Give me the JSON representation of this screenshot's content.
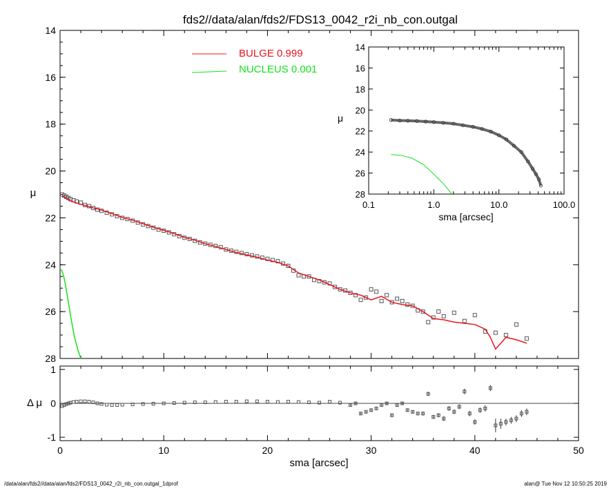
{
  "footer": {
    "file_path": "/data/alan/fds2//data/alan/fds2/FDS13_0042_r2i_nb_con.outgal_1dprof",
    "user_time": "alan@  Tue Nov 12 10:50:25 2019"
  },
  "legend": {
    "bulge": "BULGE  0.999",
    "nucleus": "NUCLEUS  0.001"
  },
  "colors": {
    "bulge": "#e8141c",
    "nucleus": "#14e21c",
    "points": "#555555",
    "axes": "#000000"
  },
  "chart_data": [
    {
      "id": "main-profile",
      "type": "scatter",
      "title": "fds2//data/alan/fds2/FDS13_0042_r2i_nb_con.outgal",
      "ylabel": "μ",
      "xlim": [
        0,
        50
      ],
      "ylim": [
        28,
        14
      ],
      "yticks": [
        14,
        16,
        18,
        20,
        22,
        24,
        26,
        28
      ],
      "xticks_shown": false,
      "points": {
        "x": [
          0.2,
          0.4,
          0.6,
          0.8,
          1.0,
          1.3,
          1.6,
          2.0,
          2.4,
          2.8,
          3.2,
          3.6,
          4.0,
          4.5,
          5.0,
          5.5,
          6.0,
          6.5,
          7.0,
          7.5,
          8.0,
          8.5,
          9.0,
          9.5,
          10.0,
          10.5,
          11.0,
          11.5,
          12.0,
          12.5,
          13.0,
          13.5,
          14.0,
          14.5,
          15.0,
          15.5,
          16.0,
          16.5,
          17.0,
          17.5,
          18.0,
          18.5,
          19.0,
          19.5,
          20.0,
          20.5,
          21.0,
          21.5,
          22.0,
          22.5,
          23.0,
          23.5,
          24.0,
          24.5,
          25.0,
          25.5,
          26.0,
          26.5,
          27.0,
          27.5,
          28.0,
          28.5,
          29.0,
          29.5,
          30.0,
          30.5,
          31.0,
          31.5,
          32.0,
          32.5,
          33.0,
          33.5,
          34.0,
          34.5,
          35.0,
          35.5,
          36.0,
          36.5,
          37.0,
          38.0,
          39.0,
          40.0,
          41.0,
          42.0,
          43.0,
          44.0,
          45.0
        ],
        "y": [
          21.0,
          21.05,
          21.1,
          21.15,
          21.2,
          21.25,
          21.3,
          21.35,
          21.45,
          21.5,
          21.58,
          21.65,
          21.7,
          21.78,
          21.85,
          21.93,
          22.0,
          22.05,
          22.12,
          22.2,
          22.28,
          22.35,
          22.42,
          22.5,
          22.55,
          22.62,
          22.7,
          22.78,
          22.85,
          22.9,
          22.98,
          23.05,
          23.1,
          23.15,
          23.2,
          23.25,
          23.35,
          23.4,
          23.45,
          23.5,
          23.55,
          23.6,
          23.65,
          23.7,
          23.75,
          23.8,
          23.85,
          23.95,
          24.05,
          24.25,
          24.45,
          24.5,
          24.5,
          24.65,
          24.7,
          24.75,
          24.8,
          24.95,
          25.05,
          25.1,
          25.2,
          25.3,
          25.5,
          25.4,
          25.05,
          25.15,
          25.55,
          25.3,
          25.6,
          25.45,
          25.55,
          25.7,
          25.75,
          25.95,
          26.0,
          26.45,
          26.25,
          26.0,
          26.2,
          26.05,
          26.4,
          26.15,
          26.85,
          26.9,
          27.0,
          26.55,
          27.15
        ],
        "marker": "open-square"
      },
      "series": [
        {
          "name": "BULGE 0.999",
          "color": "#e8141c",
          "x": [
            0.2,
            1.0,
            2.0,
            3.0,
            4.0,
            5.0,
            6.0,
            7.0,
            8.0,
            9.0,
            10.0,
            11.0,
            12.0,
            13.0,
            14.0,
            15.0,
            16.0,
            17.0,
            18.0,
            19.0,
            20.0,
            21.0,
            22.0,
            23.0,
            24.0,
            25.0,
            26.0,
            27.0,
            28.0,
            29.0,
            30.0,
            31.0,
            32.0,
            33.0,
            34.0,
            35.0,
            36.0,
            37.0,
            38.0,
            39.0,
            40.0,
            41.0,
            41.5,
            42.0,
            43.0,
            44.0,
            45.0
          ],
          "y": [
            21.05,
            21.28,
            21.42,
            21.55,
            21.67,
            21.82,
            21.98,
            22.1,
            22.25,
            22.4,
            22.53,
            22.67,
            22.83,
            22.95,
            23.1,
            23.22,
            23.35,
            23.48,
            23.58,
            23.68,
            23.8,
            23.9,
            24.05,
            24.35,
            24.5,
            24.65,
            24.85,
            25.05,
            25.2,
            25.3,
            25.5,
            25.35,
            25.6,
            25.7,
            25.75,
            26.0,
            26.3,
            26.35,
            26.45,
            26.5,
            26.55,
            26.75,
            27.1,
            27.6,
            27.1,
            27.2,
            27.35
          ]
        },
        {
          "name": "NUCLEUS 0.001",
          "color": "#14e21c",
          "x": [
            0.1,
            0.3,
            0.5,
            0.8,
            1.1,
            1.4,
            1.7,
            2.0
          ],
          "y": [
            24.2,
            24.4,
            24.8,
            25.6,
            26.4,
            27.1,
            27.6,
            28.0
          ]
        }
      ]
    },
    {
      "id": "inset-profile",
      "type": "scatter",
      "xlabel": "sma [arcsec]",
      "ylabel": "μ",
      "xscale": "log",
      "xlim": [
        0.1,
        100
      ],
      "ylim": [
        28,
        14
      ],
      "xtick_labels": [
        "0.1",
        "1.0",
        "10.0",
        "100.0"
      ],
      "yticks": [
        14,
        16,
        18,
        20,
        22,
        24,
        26,
        28
      ],
      "points": {
        "x": [
          0.22,
          0.3,
          0.4,
          0.55,
          0.75,
          1.0,
          1.4,
          2.0,
          2.8,
          4.0,
          5.5,
          7.5,
          10.0,
          13.0,
          17.0,
          22.0,
          28.0,
          33.0,
          37.0,
          41.0,
          44.0
        ],
        "y": [
          20.95,
          21.0,
          21.02,
          21.05,
          21.1,
          21.15,
          21.22,
          21.3,
          21.45,
          21.6,
          21.8,
          22.05,
          22.4,
          22.8,
          23.4,
          24.0,
          24.9,
          25.6,
          26.1,
          26.6,
          27.2
        ]
      },
      "series": [
        {
          "name": "NUCLEUS 0.001",
          "color": "#14e21c",
          "x": [
            0.22,
            0.3,
            0.45,
            0.7,
            1.0,
            1.4,
            1.9
          ],
          "y": [
            24.25,
            24.3,
            24.55,
            25.2,
            26.1,
            27.0,
            28.0
          ]
        }
      ]
    },
    {
      "id": "residuals",
      "type": "scatter",
      "xlabel": "sma [arcsec]",
      "ylabel": "Δ μ",
      "xlim": [
        0,
        50
      ],
      "ylim": [
        -1.1,
        1.1
      ],
      "xticks": [
        0,
        10,
        20,
        30,
        40,
        50
      ],
      "yticks": [
        -1,
        0,
        1
      ],
      "points": {
        "x": [
          0.2,
          0.4,
          0.6,
          0.8,
          1.0,
          1.3,
          1.6,
          2.0,
          2.4,
          2.8,
          3.2,
          3.6,
          4.0,
          4.5,
          5.0,
          5.5,
          6.0,
          7.0,
          8.0,
          9.0,
          10.0,
          11.0,
          12.0,
          13.0,
          14.0,
          15.0,
          16.0,
          17.0,
          18.0,
          19.0,
          20.0,
          21.0,
          22.0,
          23.0,
          24.0,
          25.0,
          26.0,
          27.0,
          28.0,
          28.5,
          29.0,
          29.5,
          30.0,
          30.5,
          31.0,
          31.5,
          32.0,
          32.5,
          33.0,
          33.5,
          34.0,
          34.5,
          35.0,
          35.5,
          36.0,
          36.5,
          37.0,
          37.5,
          38.0,
          38.5,
          39.0,
          39.5,
          40.0,
          40.5,
          41.0,
          41.5,
          42.0,
          42.5,
          43.0,
          43.5,
          44.0,
          44.5,
          45.0
        ],
        "y": [
          -0.08,
          -0.05,
          -0.02,
          0.0,
          0.02,
          0.04,
          0.05,
          0.06,
          0.06,
          0.05,
          0.03,
          0.0,
          -0.02,
          -0.04,
          -0.05,
          -0.05,
          -0.04,
          -0.03,
          -0.02,
          -0.01,
          0.0,
          0.01,
          0.02,
          0.03,
          0.03,
          0.04,
          0.05,
          0.05,
          0.06,
          0.06,
          0.05,
          0.04,
          0.05,
          0.04,
          0.03,
          0.02,
          0.05,
          0.02,
          -0.05,
          0.0,
          -0.3,
          -0.25,
          -0.2,
          -0.15,
          -0.05,
          0.0,
          -0.35,
          -0.05,
          0.0,
          -0.2,
          -0.25,
          -0.3,
          -0.3,
          0.28,
          -0.4,
          -0.35,
          -0.45,
          -0.15,
          -0.25,
          -0.1,
          0.35,
          -0.3,
          -0.55,
          -0.2,
          -0.15,
          0.45,
          -0.65,
          -0.6,
          -0.55,
          -0.5,
          -0.45,
          -0.3,
          -0.25
        ],
        "err": [
          0.02,
          0.02,
          0.02,
          0.02,
          0.02,
          0.02,
          0.02,
          0.02,
          0.02,
          0.02,
          0.02,
          0.02,
          0.02,
          0.02,
          0.02,
          0.02,
          0.02,
          0.02,
          0.02,
          0.02,
          0.02,
          0.02,
          0.02,
          0.02,
          0.02,
          0.02,
          0.02,
          0.02,
          0.02,
          0.02,
          0.02,
          0.02,
          0.02,
          0.02,
          0.02,
          0.02,
          0.02,
          0.02,
          0.03,
          0.03,
          0.04,
          0.04,
          0.04,
          0.04,
          0.04,
          0.04,
          0.05,
          0.05,
          0.05,
          0.05,
          0.05,
          0.05,
          0.06,
          0.06,
          0.06,
          0.06,
          0.07,
          0.07,
          0.07,
          0.07,
          0.08,
          0.08,
          0.08,
          0.08,
          0.09,
          0.09,
          0.2,
          0.15,
          0.1,
          0.1,
          0.1,
          0.1,
          0.1
        ]
      }
    }
  ]
}
